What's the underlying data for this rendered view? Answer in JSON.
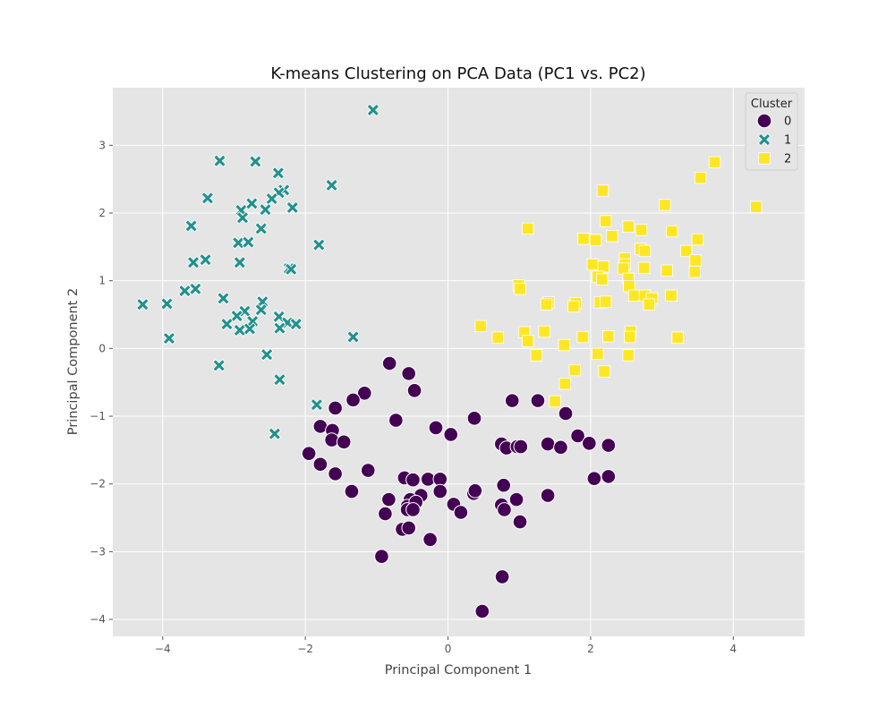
{
  "chart_data": {
    "type": "scatter",
    "title": "K-means Clustering on PCA Data (PC1 vs. PC2)",
    "xlabel": "Principal Component 1",
    "ylabel": "Principal Component 2",
    "xlim": [
      -4.7,
      5.0
    ],
    "ylim": [
      -4.25,
      3.85
    ],
    "xticks": [
      -4,
      -2,
      0,
      2,
      4
    ],
    "yticks": [
      -4,
      -3,
      -2,
      -1,
      0,
      1,
      2,
      3
    ],
    "grid": true,
    "background": "#e5e5e5",
    "legend": {
      "title": "Cluster",
      "position": "top-right"
    },
    "series": [
      {
        "name": "0",
        "marker": "circle",
        "color": "#440154",
        "points": [
          [
            -0.82,
            -0.22
          ],
          [
            -0.55,
            -0.37
          ],
          [
            -0.47,
            -0.62
          ],
          [
            -1.17,
            -0.66
          ],
          [
            -1.33,
            -0.76
          ],
          [
            -1.58,
            -0.88
          ],
          [
            -0.73,
            -1.06
          ],
          [
            -1.79,
            -1.15
          ],
          [
            -1.62,
            -1.21
          ],
          [
            -1.63,
            -1.35
          ],
          [
            -1.46,
            -1.38
          ],
          [
            -1.95,
            -1.55
          ],
          [
            -1.79,
            -1.71
          ],
          [
            -1.58,
            -1.85
          ],
          [
            -1.12,
            -1.8
          ],
          [
            -1.35,
            -2.11
          ],
          [
            -0.61,
            -1.91
          ],
          [
            -0.49,
            -1.94
          ],
          [
            -0.28,
            -1.93
          ],
          [
            -0.11,
            -1.93
          ],
          [
            -0.38,
            -2.17
          ],
          [
            -0.11,
            -2.11
          ],
          [
            -0.53,
            -2.23
          ],
          [
            -0.83,
            -2.23
          ],
          [
            -0.88,
            -2.44
          ],
          [
            -0.57,
            -2.33
          ],
          [
            -0.45,
            -2.27
          ],
          [
            -0.57,
            -2.38
          ],
          [
            -0.49,
            -2.38
          ],
          [
            -0.64,
            -2.67
          ],
          [
            -0.55,
            -2.65
          ],
          [
            -0.25,
            -2.82
          ],
          [
            -0.93,
            -3.07
          ],
          [
            0.08,
            -2.3
          ],
          [
            0.18,
            -2.42
          ],
          [
            -0.17,
            -1.17
          ],
          [
            0.04,
            -1.27
          ],
          [
            0.37,
            -1.03
          ],
          [
            0.36,
            -2.14
          ],
          [
            0.38,
            -2.1
          ],
          [
            0.75,
            -2.31
          ],
          [
            0.78,
            -2.02
          ],
          [
            0.79,
            -2.38
          ],
          [
            0.96,
            -2.23
          ],
          [
            1.01,
            -2.56
          ],
          [
            0.75,
            -1.41
          ],
          [
            0.82,
            -1.47
          ],
          [
            0.97,
            -1.45
          ],
          [
            1.02,
            -1.45
          ],
          [
            0.9,
            -0.77
          ],
          [
            1.26,
            -0.77
          ],
          [
            1.65,
            -0.96
          ],
          [
            1.4,
            -1.41
          ],
          [
            1.58,
            -1.46
          ],
          [
            1.82,
            -1.29
          ],
          [
            1.98,
            -1.4
          ],
          [
            2.25,
            -1.43
          ],
          [
            1.4,
            -2.17
          ],
          [
            2.05,
            -1.92
          ],
          [
            2.25,
            -1.89
          ],
          [
            0.76,
            -3.37
          ],
          [
            0.48,
            -3.88
          ]
        ]
      },
      {
        "name": "1",
        "marker": "x",
        "color": "#21918c",
        "points": [
          [
            -1.05,
            3.52
          ],
          [
            -3.2,
            2.77
          ],
          [
            -2.7,
            2.76
          ],
          [
            -2.38,
            2.59
          ],
          [
            -2.3,
            2.34
          ],
          [
            -2.37,
            2.3
          ],
          [
            -2.47,
            2.21
          ],
          [
            -1.63,
            2.41
          ],
          [
            -3.37,
            2.22
          ],
          [
            -2.9,
            2.04
          ],
          [
            -2.88,
            1.93
          ],
          [
            -2.75,
            2.14
          ],
          [
            -2.56,
            2.05
          ],
          [
            -2.18,
            2.08
          ],
          [
            -3.6,
            1.81
          ],
          [
            -2.62,
            1.77
          ],
          [
            -2.94,
            1.56
          ],
          [
            -2.8,
            1.57
          ],
          [
            -1.81,
            1.53
          ],
          [
            -3.57,
            1.27
          ],
          [
            -3.4,
            1.31
          ],
          [
            -2.92,
            1.27
          ],
          [
            -2.23,
            1.18
          ],
          [
            -2.2,
            1.17
          ],
          [
            -4.28,
            0.65
          ],
          [
            -3.94,
            0.66
          ],
          [
            -3.69,
            0.85
          ],
          [
            -3.54,
            0.88
          ],
          [
            -3.15,
            0.74
          ],
          [
            -2.6,
            0.69
          ],
          [
            -2.62,
            0.57
          ],
          [
            -2.85,
            0.55
          ],
          [
            -2.96,
            0.48
          ],
          [
            -2.74,
            0.4
          ],
          [
            -3.1,
            0.36
          ],
          [
            -2.92,
            0.27
          ],
          [
            -2.78,
            0.29
          ],
          [
            -2.37,
            0.47
          ],
          [
            -2.25,
            0.38
          ],
          [
            -2.13,
            0.36
          ],
          [
            -2.36,
            0.3
          ],
          [
            -3.91,
            0.15
          ],
          [
            -1.33,
            0.17
          ],
          [
            -3.21,
            -0.25
          ],
          [
            -2.54,
            -0.09
          ],
          [
            -2.36,
            -0.46
          ],
          [
            -1.84,
            -0.83
          ],
          [
            -2.43,
            -1.26
          ]
        ]
      },
      {
        "name": "2",
        "marker": "square",
        "color": "#fde725",
        "points": [
          [
            4.32,
            2.09
          ],
          [
            3.74,
            2.75
          ],
          [
            3.54,
            2.52
          ],
          [
            3.04,
            2.12
          ],
          [
            2.17,
            2.33
          ],
          [
            1.12,
            1.77
          ],
          [
            2.21,
            1.88
          ],
          [
            2.53,
            1.8
          ],
          [
            2.71,
            1.75
          ],
          [
            3.14,
            1.73
          ],
          [
            3.5,
            1.61
          ],
          [
            1.9,
            1.62
          ],
          [
            2.07,
            1.6
          ],
          [
            2.3,
            1.66
          ],
          [
            2.7,
            1.47
          ],
          [
            2.76,
            1.44
          ],
          [
            3.34,
            1.44
          ],
          [
            2.48,
            1.33
          ],
          [
            3.47,
            1.3
          ],
          [
            2.03,
            1.24
          ],
          [
            2.18,
            1.21
          ],
          [
            2.48,
            1.24
          ],
          [
            2.46,
            1.18
          ],
          [
            2.75,
            1.19
          ],
          [
            3.07,
            1.15
          ],
          [
            3.46,
            1.13
          ],
          [
            2.1,
            1.06
          ],
          [
            2.16,
            1.02
          ],
          [
            2.53,
            1.03
          ],
          [
            0.99,
            0.93
          ],
          [
            1.01,
            0.88
          ],
          [
            2.54,
            0.92
          ],
          [
            2.61,
            0.78
          ],
          [
            2.76,
            0.78
          ],
          [
            2.86,
            0.74
          ],
          [
            2.82,
            0.65
          ],
          [
            3.13,
            0.78
          ],
          [
            1.41,
            0.68
          ],
          [
            1.38,
            0.65
          ],
          [
            1.79,
            0.67
          ],
          [
            1.76,
            0.62
          ],
          [
            2.13,
            0.68
          ],
          [
            2.21,
            0.69
          ],
          [
            0.46,
            0.33
          ],
          [
            0.7,
            0.16
          ],
          [
            1.07,
            0.24
          ],
          [
            1.12,
            0.11
          ],
          [
            1.35,
            0.25
          ],
          [
            1.89,
            0.17
          ],
          [
            2.25,
            0.18
          ],
          [
            2.56,
            0.25
          ],
          [
            2.55,
            0.17
          ],
          [
            3.22,
            0.16
          ],
          [
            1.63,
            0.05
          ],
          [
            1.24,
            -0.1
          ],
          [
            2.1,
            -0.08
          ],
          [
            2.53,
            -0.1
          ],
          [
            1.78,
            -0.32
          ],
          [
            2.19,
            -0.34
          ],
          [
            1.64,
            -0.52
          ],
          [
            1.5,
            -0.78
          ]
        ]
      }
    ]
  }
}
